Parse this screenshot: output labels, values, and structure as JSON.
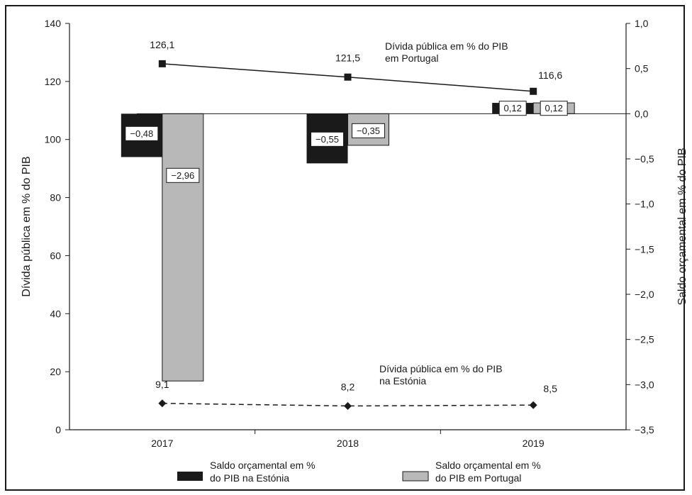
{
  "chart_data": {
    "type": "bar+line",
    "categories": [
      "2017",
      "2018",
      "2019"
    ],
    "left_axis": {
      "label": "Dívida pública em % do PIB",
      "ylim": [
        0,
        140
      ],
      "ticks": [
        "0",
        "20",
        "40",
        "60",
        "80",
        "100",
        "120",
        "140"
      ]
    },
    "right_axis": {
      "label": "Saldo orçamental em % do PIB",
      "ylim": [
        -3.5,
        1.0
      ],
      "ticks": [
        "1,0",
        "0,5",
        "0,0",
        "−0,5",
        "−1,0",
        "−1,5",
        "−2,0",
        "−2,5",
        "−3,0",
        "−3,5"
      ]
    },
    "bar_series": [
      {
        "name": "Saldo orçamental em % do PIB na Estónia",
        "legend_lines": [
          "Saldo orçamental em %",
          "do PIB na Estónia"
        ],
        "color": "#1a1a1a",
        "values": [
          -0.48,
          -0.55,
          0.12
        ],
        "labels": [
          "−0,48",
          "−0,55",
          "0,12"
        ]
      },
      {
        "name": "Saldo orçamental em % do PIB em Portugal",
        "legend_lines": [
          "Saldo orçamental em %",
          "do PIB em Portugal"
        ],
        "color": "#b8b8b8",
        "values": [
          -2.96,
          -0.35,
          0.12
        ],
        "labels": [
          "−2,96",
          "−0,35",
          "0,12"
        ]
      }
    ],
    "line_series": [
      {
        "name": "Dívida pública em % do PIB em Portugal",
        "annotation_lines": [
          "Dívida pública em % do PIB",
          "em Portugal"
        ],
        "style": "solid",
        "marker": "square",
        "values": [
          126.1,
          121.5,
          116.6
        ],
        "labels": [
          "126,1",
          "121,5",
          "116,6"
        ]
      },
      {
        "name": "Dívida pública em % do PIB na Estónia",
        "annotation_lines": [
          "Dívida pública em % do PIB",
          "na Estónia"
        ],
        "style": "dashed",
        "marker": "diamond",
        "values": [
          9.1,
          8.2,
          8.5
        ],
        "labels": [
          "9,1",
          "8,2",
          "8,5"
        ]
      }
    ],
    "grid": false,
    "legend_position": "bottom"
  }
}
